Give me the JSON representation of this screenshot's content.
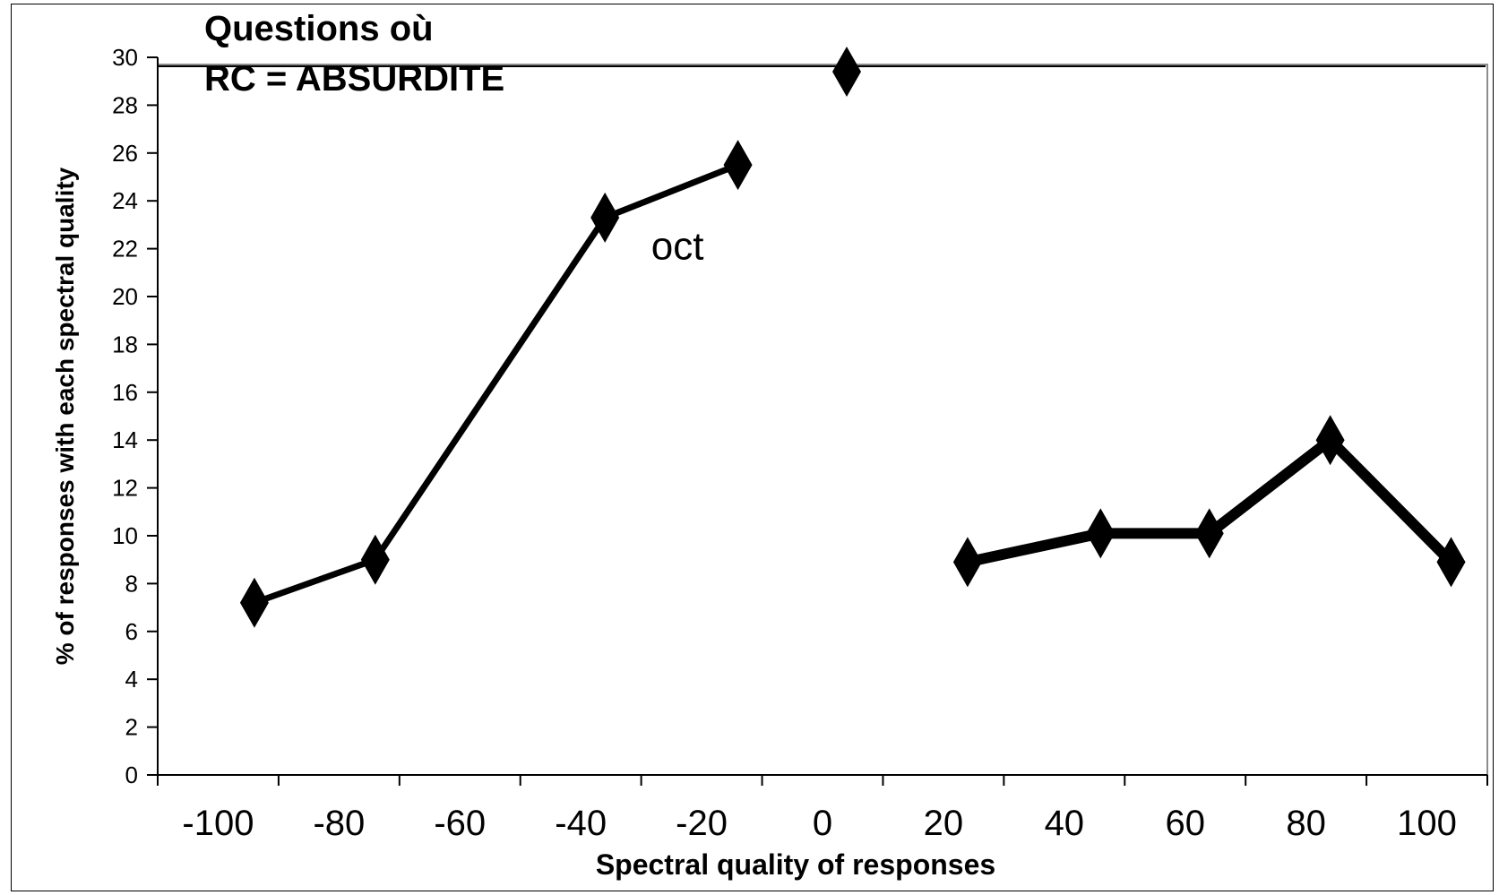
{
  "chart_data": {
    "type": "line",
    "title": [
      "Questions où",
      "RC = ABSURDITE"
    ],
    "xlabel": "Spectral quality of responses",
    "ylabel": "% of responses with each spectral quality",
    "xlim": [
      -110,
      110
    ],
    "ylim": [
      0,
      30
    ],
    "xticks": [
      -100,
      -80,
      -60,
      -40,
      -20,
      0,
      20,
      40,
      60,
      80,
      100
    ],
    "yticks": [
      0,
      2,
      4,
      6,
      8,
      10,
      12,
      14,
      16,
      18,
      20,
      22,
      24,
      26,
      28,
      30
    ],
    "grid": false,
    "annotation": {
      "text": "oct",
      "x": -24,
      "y": 22
    },
    "series": [
      {
        "name": "",
        "width": "thin",
        "points": [
          [
            -94,
            7.2
          ],
          [
            -74,
            9.0
          ],
          [
            -36,
            23.3
          ],
          [
            -14,
            25.5
          ]
        ]
      },
      {
        "name": "",
        "width": "none",
        "points": [
          [
            4,
            29.4
          ]
        ]
      },
      {
        "name": "",
        "width": "thick",
        "points": [
          [
            24,
            8.9
          ],
          [
            46,
            10.1
          ],
          [
            64,
            10.1
          ],
          [
            84,
            14.0
          ],
          [
            104,
            8.9
          ]
        ]
      }
    ]
  }
}
